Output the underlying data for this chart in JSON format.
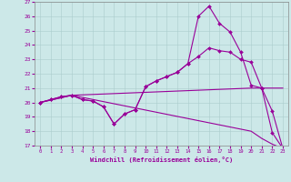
{
  "xlabel": "Windchill (Refroidissement éolien,°C)",
  "background_color": "#cce8e8",
  "line_color": "#990099",
  "xlim": [
    -0.5,
    23.5
  ],
  "ylim": [
    17,
    27
  ],
  "yticks": [
    17,
    18,
    19,
    20,
    21,
    22,
    23,
    24,
    25,
    26,
    27
  ],
  "xticks": [
    0,
    1,
    2,
    3,
    4,
    5,
    6,
    7,
    8,
    9,
    10,
    11,
    12,
    13,
    14,
    15,
    16,
    17,
    18,
    19,
    20,
    21,
    22,
    23
  ],
  "series": [
    {
      "x": [
        0,
        1,
        2,
        3,
        4,
        5,
        6,
        7,
        8,
        9,
        10,
        11,
        12,
        13,
        14,
        15,
        16,
        17,
        18,
        19,
        20,
        21,
        22,
        23
      ],
      "y": [
        20.0,
        20.2,
        20.4,
        20.5,
        20.2,
        20.1,
        19.7,
        18.5,
        19.2,
        19.5,
        21.1,
        21.5,
        21.8,
        22.1,
        22.7,
        26.0,
        26.7,
        25.5,
        24.9,
        23.5,
        21.2,
        21.0,
        17.9,
        16.8
      ],
      "marker": true
    },
    {
      "x": [
        0,
        1,
        2,
        3,
        4,
        5,
        6,
        7,
        8,
        9,
        10,
        11,
        12,
        13,
        14,
        15,
        16,
        17,
        18,
        19,
        20,
        21,
        22,
        23
      ],
      "y": [
        20.0,
        20.2,
        20.4,
        20.5,
        20.2,
        20.1,
        19.7,
        18.5,
        19.2,
        19.5,
        21.1,
        21.5,
        21.8,
        22.1,
        22.7,
        23.2,
        23.8,
        23.6,
        23.5,
        23.0,
        22.8,
        21.0,
        19.4,
        16.8
      ],
      "marker": true
    },
    {
      "x": [
        0,
        3,
        20,
        23
      ],
      "y": [
        20.0,
        20.5,
        21.0,
        21.0
      ],
      "marker": false
    },
    {
      "x": [
        0,
        3,
        20,
        21,
        22,
        23
      ],
      "y": [
        20.0,
        20.5,
        18.0,
        17.5,
        17.1,
        16.8
      ],
      "marker": false
    }
  ]
}
